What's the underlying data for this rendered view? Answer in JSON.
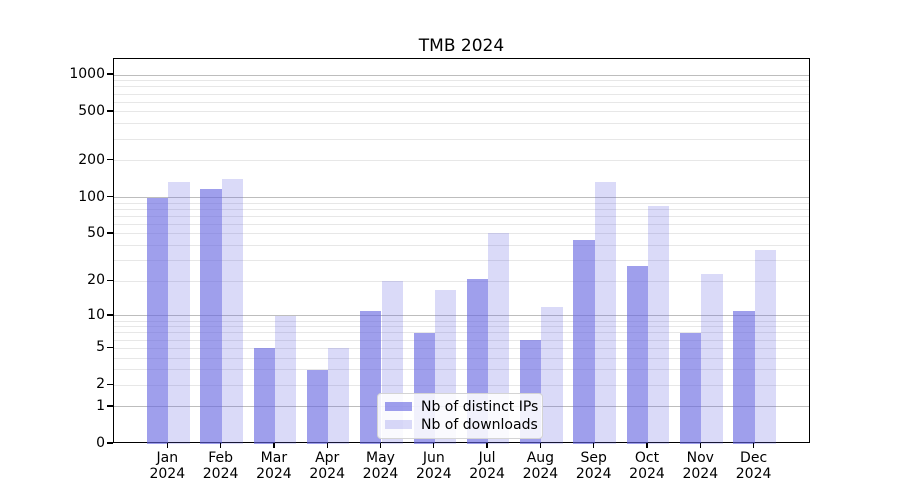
{
  "chart_data": {
    "type": "bar",
    "title": "TMB 2024",
    "categories": [
      "Jan 2024",
      "Feb 2024",
      "Mar 2024",
      "Apr 2024",
      "May 2024",
      "Jun 2024",
      "Jul 2024",
      "Aug 2024",
      "Sep 2024",
      "Oct 2024",
      "Nov 2024",
      "Dec 2024"
    ],
    "series": [
      {
        "name": "Nb of distinct IPs",
        "color": "#6464e1",
        "alpha": 0.62,
        "values": [
          100,
          117,
          5,
          3,
          11,
          7,
          21,
          6,
          45,
          27,
          7,
          11
        ]
      },
      {
        "name": "Nb of downloads",
        "color": "#6464e1",
        "alpha": 0.24,
        "values": [
          133,
          141,
          10,
          5,
          20,
          17,
          51,
          12,
          133,
          85,
          23,
          37
        ]
      }
    ],
    "xlabel": "",
    "ylabel": "",
    "yscale": "log10(1+y)",
    "ylim": [
      0,
      1349
    ],
    "y_ticks": [
      0,
      1,
      2,
      5,
      10,
      20,
      50,
      100,
      200,
      500,
      1000
    ],
    "grid": "horizontal, major decades dark + minor 2-9 per decade light",
    "legend_position": "lower center"
  },
  "colors": {
    "grid_major": "#bdbdbd",
    "grid_minor": "#e7e7e7",
    "axis": "#000000",
    "background": "#ffffff"
  }
}
